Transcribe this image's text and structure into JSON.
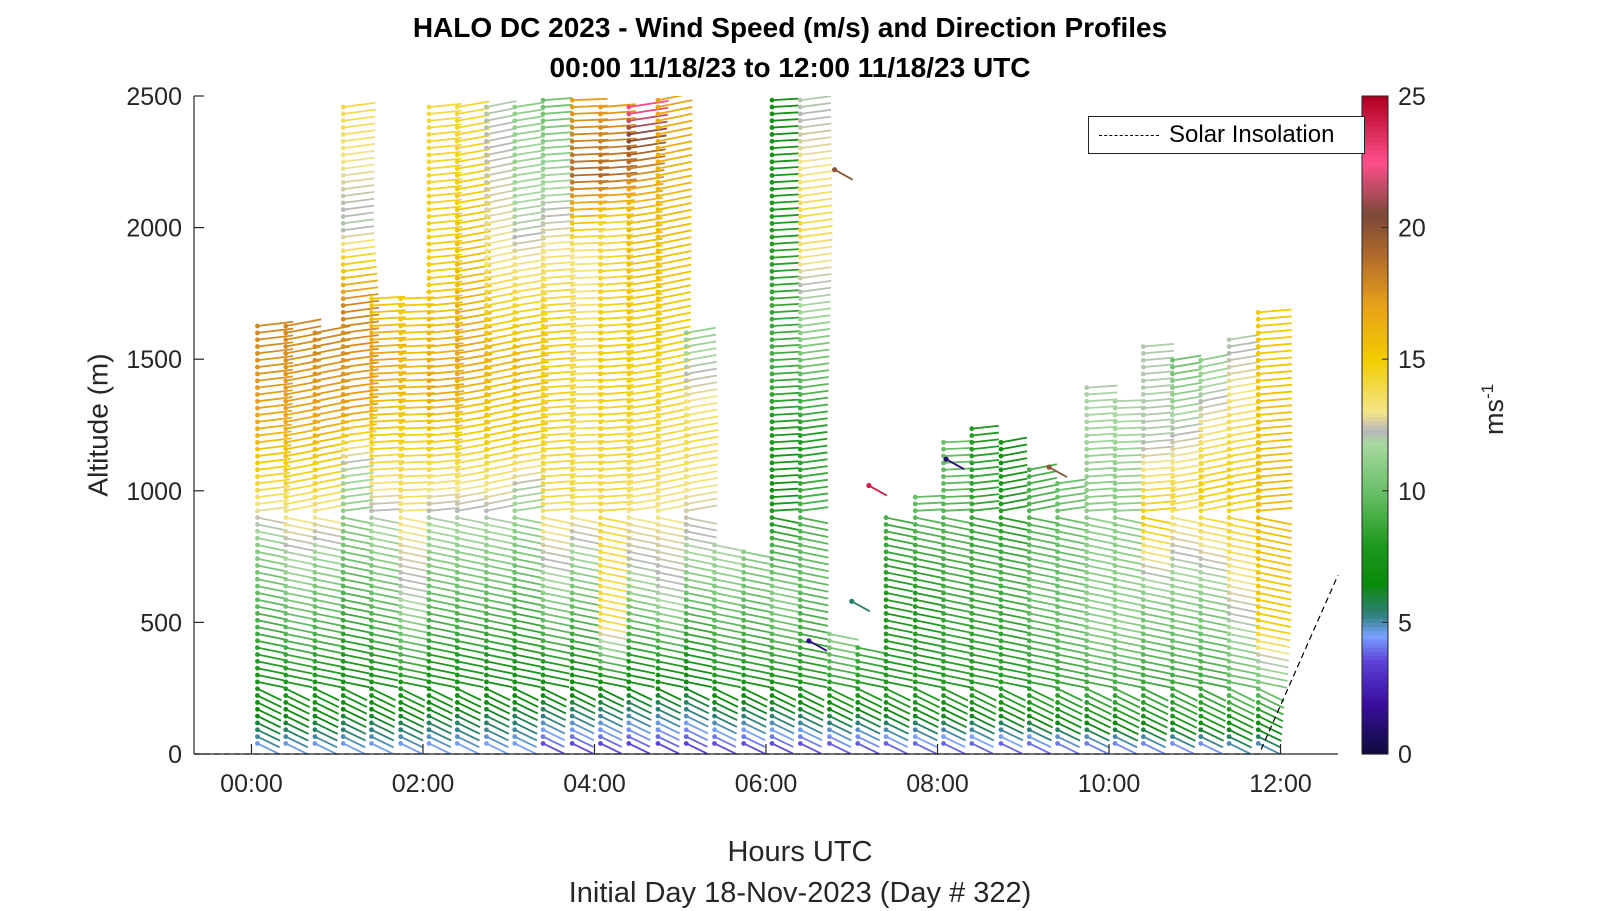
{
  "chart_data": {
    "type": "wind-barb profile",
    "title": "HALO DC 2023 - Wind Speed (m/s) and Direction Profiles",
    "subtitle": "00:00 11/18/23 to 12:00 11/18/23  UTC",
    "xlabel": "Hours UTC",
    "ylabel": "Altitude (m)",
    "footnote": "Initial Day 18-Nov-2023 (Day # 322)",
    "xlim": [
      -0.67,
      12.67
    ],
    "ylim": [
      0,
      2500
    ],
    "x_ticks": [
      {
        "value": 0,
        "label": "00:00"
      },
      {
        "value": 2,
        "label": "02:00"
      },
      {
        "value": 4,
        "label": "04:00"
      },
      {
        "value": 6,
        "label": "06:00"
      },
      {
        "value": 8,
        "label": "08:00"
      },
      {
        "value": 10,
        "label": "10:00"
      },
      {
        "value": 12,
        "label": "12:00"
      }
    ],
    "y_ticks": [
      0,
      500,
      1000,
      1500,
      2000,
      2500
    ],
    "y_tick_labels": [
      "0",
      "500",
      "1000",
      "1500",
      "2000",
      "2500"
    ],
    "colorbar": {
      "range": [
        0,
        25
      ],
      "ticks": [
        0,
        5,
        10,
        15,
        20,
        25
      ],
      "tick_labels": [
        "0",
        "5",
        "10",
        "15",
        "20",
        "25"
      ],
      "label": "ms",
      "label_sup": "-1",
      "stops": [
        {
          "v": 0,
          "c": "#0d0b3a"
        },
        {
          "v": 2,
          "c": "#3b0fa0"
        },
        {
          "v": 3.5,
          "c": "#5a3fd6"
        },
        {
          "v": 4.5,
          "c": "#7aa2ff"
        },
        {
          "v": 5.3,
          "c": "#2f7f7f"
        },
        {
          "v": 6.5,
          "c": "#0a8a0a"
        },
        {
          "v": 8,
          "c": "#1f9a1f"
        },
        {
          "v": 10,
          "c": "#6ac06a"
        },
        {
          "v": 11.8,
          "c": "#a8d8a0"
        },
        {
          "v": 12.3,
          "c": "#b8b8b8"
        },
        {
          "v": 13,
          "c": "#f3e58a"
        },
        {
          "v": 15,
          "c": "#f2cc00"
        },
        {
          "v": 17,
          "c": "#e9a21a"
        },
        {
          "v": 19,
          "c": "#b0692c"
        },
        {
          "v": 20.5,
          "c": "#7a4a3a"
        },
        {
          "v": 22.5,
          "c": "#ff4f8b"
        },
        {
          "v": 25,
          "c": "#b00020"
        }
      ]
    },
    "legend": {
      "entries": [
        "Solar Insolation"
      ],
      "placement": "top-right"
    },
    "solar_insolation": {
      "x": [
        -0.67,
        11.75,
        12.67
      ],
      "y": [
        0,
        0,
        680
      ]
    },
    "profiles": [
      {
        "t": 0.0,
        "top": 1650,
        "l": [
          [
            0,
            4
          ],
          [
            180,
            7
          ],
          [
            800,
            11
          ],
          [
            1000,
            14
          ],
          [
            1300,
            17
          ],
          [
            1650,
            18
          ]
        ]
      },
      {
        "t": 0.33,
        "top": 1650,
        "l": [
          [
            0,
            4
          ],
          [
            180,
            7
          ],
          [
            650,
            11
          ],
          [
            1000,
            14
          ],
          [
            1300,
            17
          ],
          [
            1650,
            18
          ]
        ]
      },
      {
        "t": 0.67,
        "top": 1620,
        "l": [
          [
            0,
            4
          ],
          [
            180,
            7
          ],
          [
            700,
            11
          ],
          [
            1000,
            14
          ],
          [
            1300,
            17
          ],
          [
            1620,
            18
          ]
        ]
      },
      {
        "t": 1.0,
        "top": 2470,
        "l": [
          [
            0,
            4
          ],
          [
            200,
            7
          ],
          [
            1100,
            12
          ],
          [
            1300,
            17
          ],
          [
            1700,
            18
          ],
          [
            2000,
            12
          ],
          [
            2470,
            14
          ]
        ]
      },
      {
        "t": 1.33,
        "top": 1740,
        "l": [
          [
            0,
            4
          ],
          [
            200,
            7
          ],
          [
            900,
            12
          ],
          [
            1200,
            15
          ],
          [
            1500,
            17
          ],
          [
            1740,
            15
          ]
        ]
      },
      {
        "t": 1.67,
        "top": 1750,
        "l": [
          [
            0,
            4
          ],
          [
            200,
            7
          ],
          [
            600,
            12
          ],
          [
            1100,
            14
          ],
          [
            1400,
            16
          ],
          [
            1750,
            15
          ]
        ]
      },
      {
        "t": 2.0,
        "top": 2470,
        "l": [
          [
            0,
            4
          ],
          [
            220,
            7
          ],
          [
            900,
            12
          ],
          [
            1100,
            14
          ],
          [
            1400,
            17
          ],
          [
            1800,
            15
          ],
          [
            2470,
            14
          ]
        ]
      },
      {
        "t": 2.33,
        "top": 2480,
        "l": [
          [
            0,
            4
          ],
          [
            220,
            7
          ],
          [
            900,
            12
          ],
          [
            1100,
            14
          ],
          [
            1500,
            17
          ],
          [
            2100,
            15
          ],
          [
            2480,
            14
          ]
        ]
      },
      {
        "t": 2.67,
        "top": 2480,
        "l": [
          [
            0,
            4
          ],
          [
            240,
            7
          ],
          [
            900,
            12
          ],
          [
            1200,
            15
          ],
          [
            1500,
            16
          ],
          [
            1900,
            13
          ],
          [
            2480,
            12
          ]
        ]
      },
      {
        "t": 3.0,
        "top": 2480,
        "l": [
          [
            0,
            4
          ],
          [
            250,
            7
          ],
          [
            1000,
            12
          ],
          [
            1200,
            15
          ],
          [
            1500,
            16
          ],
          [
            2000,
            12
          ],
          [
            2480,
            11
          ]
        ]
      },
      {
        "t": 3.33,
        "top": 2490,
        "l": [
          [
            0,
            3
          ],
          [
            250,
            7
          ],
          [
            700,
            12
          ],
          [
            1000,
            14
          ],
          [
            1600,
            15
          ],
          [
            2100,
            12
          ],
          [
            2490,
            10
          ]
        ]
      },
      {
        "t": 3.67,
        "top": 2490,
        "l": [
          [
            0,
            3
          ],
          [
            260,
            7
          ],
          [
            800,
            12
          ],
          [
            1000,
            14
          ],
          [
            1400,
            14
          ],
          [
            1900,
            13
          ],
          [
            2200,
            19
          ],
          [
            2490,
            17
          ]
        ]
      },
      {
        "t": 4.0,
        "top": 2480,
        "l": [
          [
            0,
            3
          ],
          [
            270,
            7
          ],
          [
            500,
            14
          ],
          [
            1000,
            14
          ],
          [
            1500,
            15
          ],
          [
            2000,
            14
          ],
          [
            2200,
            19
          ],
          [
            2480,
            17
          ]
        ]
      },
      {
        "t": 4.33,
        "top": 2480,
        "l": [
          [
            0,
            3
          ],
          [
            280,
            7
          ],
          [
            700,
            12
          ],
          [
            1100,
            14
          ],
          [
            1500,
            15
          ],
          [
            2100,
            16
          ],
          [
            2480,
            23
          ]
        ]
      },
      {
        "t": 4.67,
        "top": 2490,
        "l": [
          [
            0,
            3
          ],
          [
            280,
            7
          ],
          [
            600,
            12
          ],
          [
            1200,
            14
          ],
          [
            1600,
            15
          ],
          [
            2100,
            16
          ],
          [
            2490,
            17
          ]
        ]
      },
      {
        "t": 5.0,
        "top": 1620,
        "l": [
          [
            0,
            3
          ],
          [
            300,
            7
          ],
          [
            800,
            12
          ],
          [
            1200,
            14
          ],
          [
            1620,
            11
          ]
        ]
      },
      {
        "t": 5.33,
        "top": 800,
        "l": [
          [
            0,
            3
          ],
          [
            300,
            8
          ],
          [
            800,
            12
          ]
        ]
      },
      {
        "t": 5.67,
        "top": 780,
        "l": [
          [
            0,
            3
          ],
          [
            300,
            8
          ],
          [
            780,
            11
          ]
        ]
      },
      {
        "t": 6.0,
        "top": 2490,
        "l": [
          [
            0,
            3
          ],
          [
            300,
            8
          ],
          [
            600,
            11
          ],
          [
            1000,
            7
          ],
          [
            1500,
            9
          ],
          [
            2000,
            8
          ],
          [
            2490,
            7
          ]
        ]
      },
      {
        "t": 6.33,
        "top": 2490,
        "l": [
          [
            0,
            3
          ],
          [
            280,
            8
          ],
          [
            700,
            10
          ],
          [
            1200,
            8
          ],
          [
            1600,
            11
          ],
          [
            2000,
            14
          ],
          [
            2490,
            12
          ]
        ]
      },
      {
        "t": 6.67,
        "top": 460,
        "l": [
          [
            0,
            3
          ],
          [
            250,
            8
          ],
          [
            460,
            11
          ]
        ]
      },
      {
        "t": 7.0,
        "top": 420,
        "l": [
          [
            0,
            3
          ],
          [
            250,
            8
          ],
          [
            420,
            9
          ]
        ]
      },
      {
        "t": 7.33,
        "top": 900,
        "l": [
          [
            0,
            3
          ],
          [
            230,
            8
          ],
          [
            600,
            8
          ],
          [
            900,
            9
          ]
        ]
      },
      {
        "t": 7.67,
        "top": 1000,
        "l": [
          [
            0,
            3
          ],
          [
            220,
            8
          ],
          [
            600,
            8
          ],
          [
            1000,
            10
          ]
        ]
      },
      {
        "t": 8.0,
        "top": 1200,
        "l": [
          [
            0,
            3
          ],
          [
            220,
            8
          ],
          [
            700,
            9
          ],
          [
            1200,
            10
          ]
        ]
      },
      {
        "t": 8.33,
        "top": 1250,
        "l": [
          [
            0,
            3
          ],
          [
            220,
            8
          ],
          [
            700,
            9
          ],
          [
            1250,
            8
          ]
        ]
      },
      {
        "t": 8.67,
        "top": 1200,
        "l": [
          [
            0,
            3
          ],
          [
            220,
            8
          ],
          [
            700,
            9
          ],
          [
            1200,
            7
          ]
        ]
      },
      {
        "t": 9.0,
        "top": 1080,
        "l": [
          [
            0,
            3
          ],
          [
            200,
            8
          ],
          [
            600,
            10
          ],
          [
            1080,
            9
          ]
        ]
      },
      {
        "t": 9.33,
        "top": 1050,
        "l": [
          [
            0,
            3
          ],
          [
            180,
            8
          ],
          [
            500,
            10
          ],
          [
            1050,
            10
          ]
        ]
      },
      {
        "t": 9.67,
        "top": 1400,
        "l": [
          [
            0,
            3
          ],
          [
            170,
            8
          ],
          [
            500,
            11
          ],
          [
            1000,
            11
          ],
          [
            1400,
            12
          ]
        ]
      },
      {
        "t": 10.0,
        "top": 1350,
        "l": [
          [
            0,
            3
          ],
          [
            160,
            8
          ],
          [
            500,
            11
          ],
          [
            1000,
            11
          ],
          [
            1350,
            12
          ]
        ]
      },
      {
        "t": 10.33,
        "top": 1570,
        "l": [
          [
            0,
            3
          ],
          [
            160,
            8
          ],
          [
            600,
            11
          ],
          [
            900,
            15
          ],
          [
            1200,
            12
          ],
          [
            1570,
            12
          ]
        ]
      },
      {
        "t": 10.67,
        "top": 1500,
        "l": [
          [
            0,
            3
          ],
          [
            150,
            8
          ],
          [
            600,
            11
          ],
          [
            1000,
            14
          ],
          [
            1500,
            10
          ]
        ]
      },
      {
        "t": 11.0,
        "top": 1500,
        "l": [
          [
            0,
            3
          ],
          [
            150,
            8
          ],
          [
            600,
            11
          ],
          [
            1000,
            15
          ],
          [
            1500,
            11
          ]
        ]
      },
      {
        "t": 11.33,
        "top": 1580,
        "l": [
          [
            0,
            4
          ],
          [
            200,
            9
          ],
          [
            500,
            12
          ],
          [
            1000,
            15
          ],
          [
            1580,
            12
          ]
        ]
      },
      {
        "t": 11.67,
        "top": 1700,
        "l": [
          [
            0,
            4
          ],
          [
            200,
            9
          ],
          [
            500,
            15
          ],
          [
            1000,
            16
          ],
          [
            1700,
            15
          ]
        ]
      }
    ],
    "isolated": [
      {
        "t": 7.2,
        "y": 1020,
        "v": 24
      },
      {
        "t": 7.0,
        "y": 580,
        "v": 5.5
      },
      {
        "t": 6.5,
        "y": 430,
        "v": 1.5
      },
      {
        "t": 8.1,
        "y": 1120,
        "v": 1
      },
      {
        "t": 9.3,
        "y": 1090,
        "v": 20
      },
      {
        "t": 6.8,
        "y": 2220,
        "v": 20
      }
    ]
  }
}
